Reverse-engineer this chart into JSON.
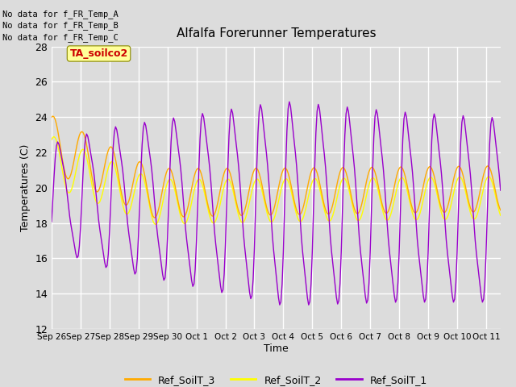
{
  "title": "Alfalfa Forerunner Temperatures",
  "xlabel": "Time",
  "ylabel": "Temperatures (C)",
  "ylim": [
    12,
    28
  ],
  "yticks": [
    12,
    14,
    16,
    18,
    20,
    22,
    24,
    26,
    28
  ],
  "text_lines": [
    "No data for f_FR_Temp_A",
    "No data for f_FR_Temp_B",
    "No data for f_FR_Temp_C"
  ],
  "annotation_text": "TA_soilco2",
  "annotation_color": "#cc0000",
  "annotation_bg": "#ffff99",
  "bg_color": "#dcdcdc",
  "grid_color": "#ffffff",
  "line_colors": {
    "Ref_SoilT_3": "#ffaa00",
    "Ref_SoilT_2": "#ffff00",
    "Ref_SoilT_1": "#9900cc"
  },
  "xtick_labels": [
    "Sep 26",
    "Sep 27",
    "Sep 28",
    "Sep 29",
    "Sep 30",
    "Oct 1",
    "Oct 2",
    "Oct 3",
    "Oct 4",
    "Oct 5",
    "Oct 6",
    "Oct 7",
    "Oct 8",
    "Oct 9",
    "Oct 10",
    "Oct 11"
  ],
  "figsize": [
    6.4,
    4.8
  ],
  "dpi": 100
}
